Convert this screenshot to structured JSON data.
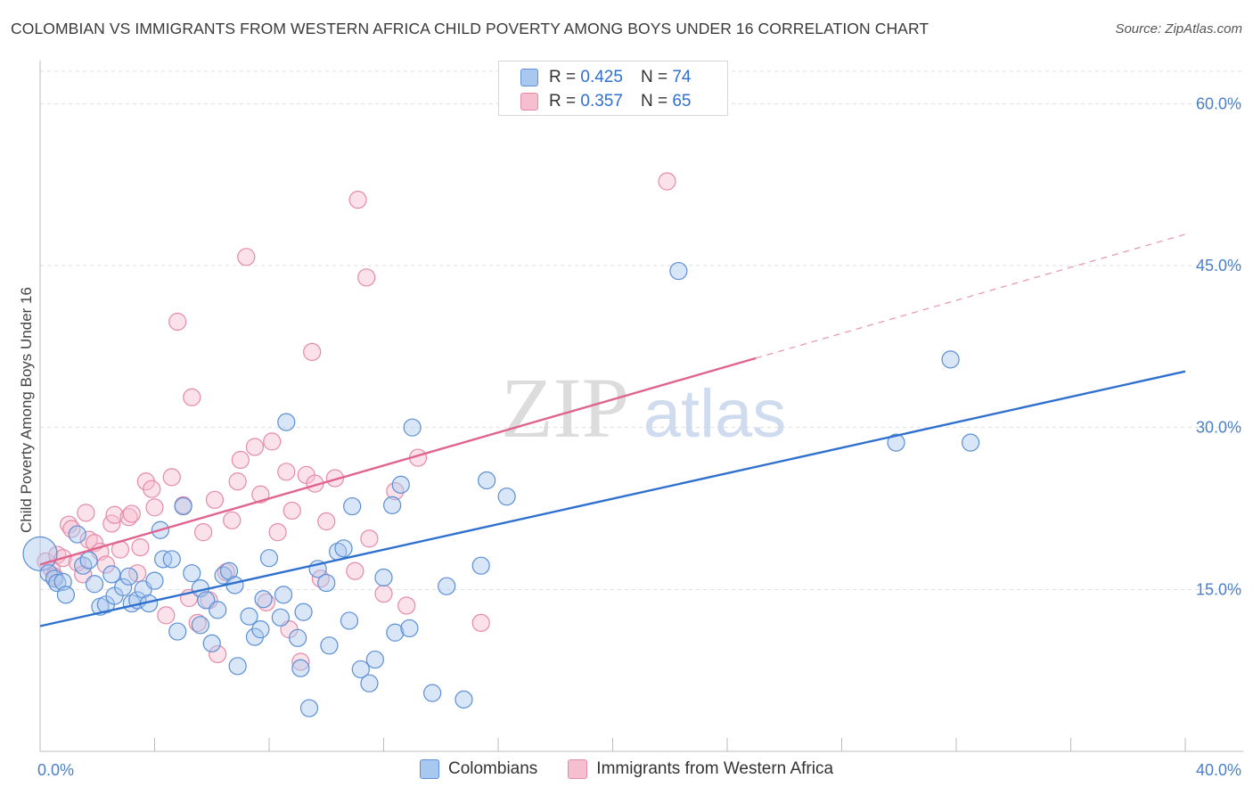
{
  "title": "COLOMBIAN VS IMMIGRANTS FROM WESTERN AFRICA CHILD POVERTY AMONG BOYS UNDER 16 CORRELATION CHART",
  "source": "Source: ZipAtlas.com",
  "watermark": {
    "zip": "ZIP",
    "atlas": "atlas"
  },
  "colors": {
    "blue_fill": "#a9c8f0",
    "blue_stroke": "#5b8fd6",
    "blue_line": "#2f70cf",
    "pink_fill": "#f6bfd0",
    "pink_stroke": "#e58aa8",
    "pink_line": "#e0648e",
    "axis_label": "#4a7fc9",
    "grid": "#dddddd"
  },
  "legend": {
    "rows": [
      {
        "r_label": "R = ",
        "r_value": "0.425",
        "n_label": "N = ",
        "n_value": "74"
      },
      {
        "r_label": "R = ",
        "r_value": "0.357",
        "n_label": "N = ",
        "n_value": "65"
      }
    ]
  },
  "bottom_legend": [
    "Colombians",
    "Immigrants from Western Africa"
  ],
  "chart_data": {
    "type": "scatter",
    "ylabel": "Child Poverty Among Boys Under 16",
    "xlim": [
      0,
      40
    ],
    "ylim": [
      0,
      63
    ],
    "x_tick_labels": [
      "0.0%",
      "40.0%"
    ],
    "y_ticks": [
      15,
      30,
      45,
      60
    ],
    "y_tick_labels": [
      "15.0%",
      "30.0%",
      "45.0%",
      "60.0%"
    ],
    "grid": "horizontal dashed",
    "legend_position": "top-center",
    "series": [
      {
        "name": "Colombians",
        "R": 0.425,
        "N": 74,
        "trend": {
          "x": [
            0,
            40
          ],
          "y": [
            11.6,
            35.2
          ],
          "dashed_from": null
        },
        "points": [
          [
            0.0,
            18.3
          ],
          [
            0.3,
            16.5
          ],
          [
            0.5,
            16.0
          ],
          [
            0.6,
            15.6
          ],
          [
            0.8,
            15.7
          ],
          [
            0.9,
            14.5
          ],
          [
            1.3,
            20.1
          ],
          [
            1.5,
            17.2
          ],
          [
            1.7,
            17.7
          ],
          [
            1.9,
            15.5
          ],
          [
            2.1,
            13.4
          ],
          [
            2.3,
            13.6
          ],
          [
            2.5,
            16.4
          ],
          [
            2.6,
            14.4
          ],
          [
            2.9,
            15.2
          ],
          [
            3.1,
            16.2
          ],
          [
            3.2,
            13.7
          ],
          [
            3.4,
            14.0
          ],
          [
            3.6,
            15.0
          ],
          [
            3.8,
            13.7
          ],
          [
            4.0,
            15.8
          ],
          [
            4.2,
            20.5
          ],
          [
            4.3,
            17.8
          ],
          [
            4.6,
            17.8
          ],
          [
            4.8,
            11.1
          ],
          [
            5.0,
            22.7
          ],
          [
            5.3,
            16.5
          ],
          [
            5.6,
            11.7
          ],
          [
            5.6,
            15.1
          ],
          [
            5.8,
            14.0
          ],
          [
            6.0,
            10.0
          ],
          [
            6.2,
            13.1
          ],
          [
            6.4,
            16.3
          ],
          [
            6.6,
            16.7
          ],
          [
            6.8,
            15.4
          ],
          [
            6.9,
            7.9
          ],
          [
            7.3,
            12.5
          ],
          [
            7.5,
            10.6
          ],
          [
            7.7,
            11.3
          ],
          [
            7.8,
            14.1
          ],
          [
            8.0,
            17.9
          ],
          [
            8.4,
            12.4
          ],
          [
            8.5,
            14.5
          ],
          [
            8.6,
            30.5
          ],
          [
            9.0,
            10.5
          ],
          [
            9.1,
            7.7
          ],
          [
            9.2,
            12.9
          ],
          [
            9.4,
            4.0
          ],
          [
            9.7,
            16.9
          ],
          [
            10.0,
            15.6
          ],
          [
            10.1,
            9.8
          ],
          [
            10.4,
            18.5
          ],
          [
            10.6,
            18.8
          ],
          [
            10.8,
            12.1
          ],
          [
            10.9,
            22.7
          ],
          [
            11.2,
            7.6
          ],
          [
            11.5,
            6.3
          ],
          [
            11.7,
            8.5
          ],
          [
            12.0,
            16.1
          ],
          [
            12.3,
            22.8
          ],
          [
            12.4,
            11.0
          ],
          [
            12.6,
            24.7
          ],
          [
            12.9,
            11.4
          ],
          [
            13.0,
            30.0
          ],
          [
            13.7,
            5.4
          ],
          [
            14.2,
            15.3
          ],
          [
            14.8,
            4.8
          ],
          [
            15.4,
            17.2
          ],
          [
            15.6,
            25.1
          ],
          [
            16.3,
            23.6
          ],
          [
            22.3,
            44.5
          ],
          [
            29.9,
            28.6
          ],
          [
            31.8,
            36.3
          ],
          [
            32.5,
            28.6
          ]
        ]
      },
      {
        "name": "Immigrants from Western Africa",
        "R": 0.357,
        "N": 65,
        "trend": {
          "x": [
            0,
            40
          ],
          "y": [
            17.3,
            47.9
          ],
          "dashed_from": 25.0
        },
        "points": [
          [
            0.2,
            17.6
          ],
          [
            0.4,
            16.9
          ],
          [
            0.5,
            16.2
          ],
          [
            0.6,
            18.2
          ],
          [
            0.8,
            17.9
          ],
          [
            1.0,
            21.0
          ],
          [
            1.1,
            20.6
          ],
          [
            1.3,
            17.5
          ],
          [
            1.5,
            16.4
          ],
          [
            1.7,
            19.6
          ],
          [
            1.9,
            19.3
          ],
          [
            2.1,
            18.5
          ],
          [
            2.3,
            17.3
          ],
          [
            2.5,
            21.1
          ],
          [
            2.6,
            21.9
          ],
          [
            2.8,
            18.7
          ],
          [
            3.1,
            21.7
          ],
          [
            3.2,
            22.0
          ],
          [
            3.4,
            16.5
          ],
          [
            3.5,
            18.9
          ],
          [
            3.7,
            25.0
          ],
          [
            3.9,
            24.3
          ],
          [
            4.0,
            22.6
          ],
          [
            4.4,
            12.6
          ],
          [
            4.6,
            25.4
          ],
          [
            4.8,
            39.8
          ],
          [
            5.0,
            22.8
          ],
          [
            5.2,
            14.2
          ],
          [
            5.3,
            32.8
          ],
          [
            5.5,
            11.9
          ],
          [
            5.7,
            20.3
          ],
          [
            5.9,
            14.0
          ],
          [
            6.1,
            23.3
          ],
          [
            6.2,
            9.0
          ],
          [
            6.5,
            16.6
          ],
          [
            6.7,
            21.4
          ],
          [
            6.9,
            25.0
          ],
          [
            7.0,
            27.0
          ],
          [
            7.2,
            45.8
          ],
          [
            7.5,
            28.2
          ],
          [
            7.7,
            23.8
          ],
          [
            7.9,
            13.8
          ],
          [
            8.1,
            28.7
          ],
          [
            8.3,
            20.3
          ],
          [
            8.6,
            25.9
          ],
          [
            8.7,
            11.3
          ],
          [
            8.8,
            22.3
          ],
          [
            9.1,
            8.3
          ],
          [
            9.3,
            25.6
          ],
          [
            9.5,
            37.0
          ],
          [
            9.6,
            24.8
          ],
          [
            9.8,
            16.0
          ],
          [
            10.0,
            21.3
          ],
          [
            10.3,
            25.3
          ],
          [
            11.1,
            51.1
          ],
          [
            11.0,
            16.7
          ],
          [
            11.4,
            43.9
          ],
          [
            11.5,
            19.7
          ],
          [
            12.0,
            14.6
          ],
          [
            12.4,
            24.1
          ],
          [
            12.8,
            13.5
          ],
          [
            13.2,
            27.2
          ],
          [
            15.4,
            11.9
          ],
          [
            21.9,
            52.8
          ],
          [
            1.6,
            22.1
          ]
        ]
      }
    ]
  }
}
